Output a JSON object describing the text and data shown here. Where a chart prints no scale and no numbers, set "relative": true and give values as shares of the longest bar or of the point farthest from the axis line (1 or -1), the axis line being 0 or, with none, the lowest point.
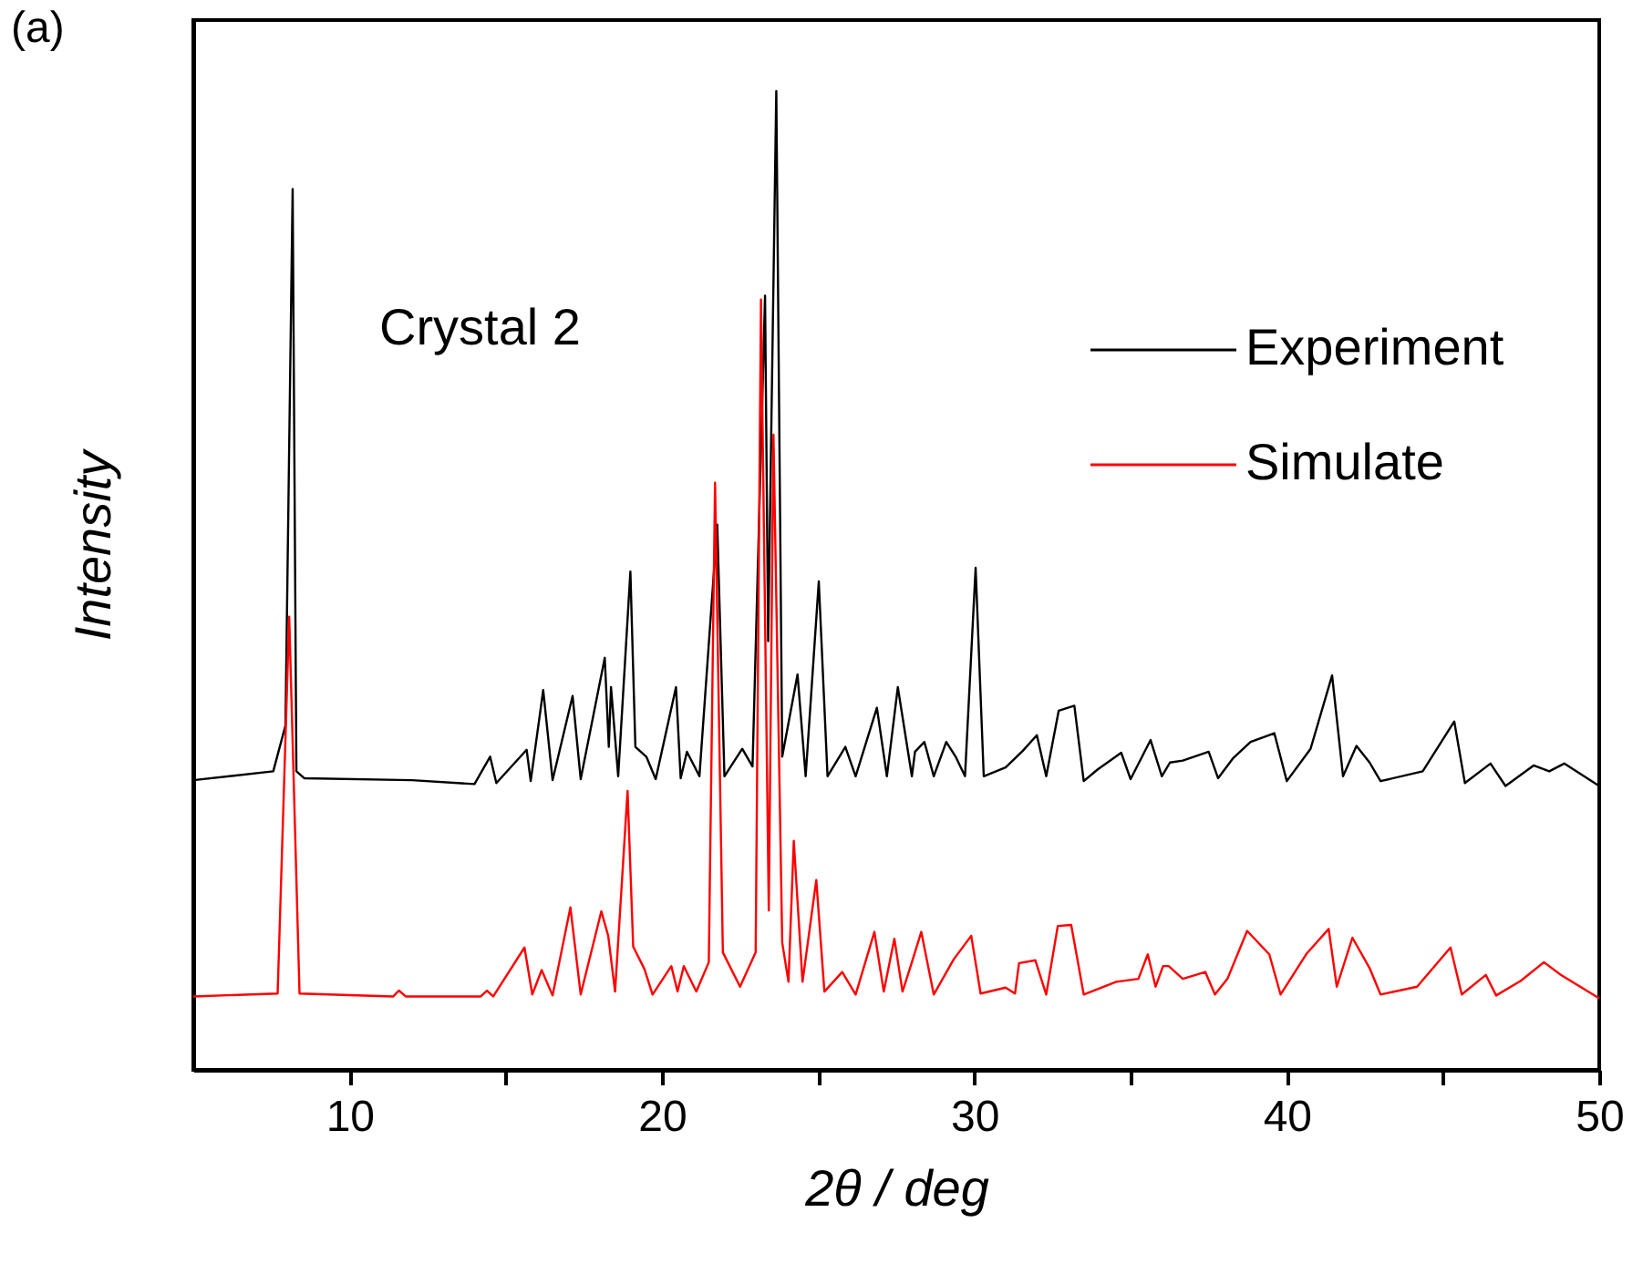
{
  "chart_data": {
    "type": "line",
    "xlabel": "2θ / deg",
    "ylabel": "Intensity",
    "relative": true,
    "xlim": [
      5,
      50
    ],
    "xticks": [
      10,
      {
        "value": 15,
        "label": null
      },
      20,
      {
        "value": 25,
        "label": null
      },
      30,
      {
        "value": 35,
        "label": null
      },
      40,
      {
        "value": 45,
        "label": null
      },
      50
    ],
    "legend": "top right",
    "grid": false,
    "marker": "none",
    "line_style": "solid",
    "annotations": [
      "(a)",
      "Crystal 2"
    ],
    "series": [
      {
        "name": "Experiment",
        "color": "#000000",
        "x": [
          5,
          7.56,
          7.95,
          8.18,
          8.3,
          8.55,
          12,
          14,
          14.5,
          14.7,
          15.67,
          15.8,
          16.2,
          16.5,
          17.14,
          17.4,
          18.17,
          18.3,
          18.37,
          18.6,
          18.99,
          19.15,
          19.5,
          19.8,
          20.45,
          20.6,
          20.8,
          21.2,
          21.77,
          22,
          22.57,
          22.9,
          23.3,
          23.4,
          23.66,
          23.85,
          24.34,
          24.6,
          25.02,
          25.3,
          25.87,
          26.2,
          26.88,
          27.2,
          27.55,
          28,
          28.1,
          28.4,
          28.7,
          29.1,
          29.4,
          29.7,
          30.04,
          30.3,
          31,
          31.55,
          32,
          32.3,
          32.7,
          33.2,
          33.5,
          33.95,
          34.7,
          35,
          35.64,
          36,
          36.26,
          36.67,
          37.5,
          37.8,
          38.27,
          38.84,
          39.6,
          40,
          40.76,
          41.45,
          41.8,
          42.23,
          42.65,
          43,
          44.35,
          45.36,
          45.7,
          46.52,
          47,
          47.9,
          48.4,
          48.88,
          50
        ],
        "values": [
          0.296,
          0.305,
          0.352,
          0.9,
          0.305,
          0.298,
          0.296,
          0.292,
          0.32,
          0.293,
          0.327,
          0.295,
          0.388,
          0.296,
          0.382,
          0.297,
          0.421,
          0.33,
          0.391,
          0.3,
          0.509,
          0.33,
          0.32,
          0.297,
          0.391,
          0.298,
          0.325,
          0.3,
          0.557,
          0.3,
          0.328,
          0.31,
          0.791,
          0.438,
          1.0,
          0.32,
          0.404,
          0.3,
          0.499,
          0.3,
          0.33,
          0.3,
          0.37,
          0.3,
          0.391,
          0.3,
          0.325,
          0.335,
          0.3,
          0.335,
          0.32,
          0.3,
          0.513,
          0.3,
          0.309,
          0.326,
          0.342,
          0.3,
          0.367,
          0.372,
          0.295,
          0.307,
          0.324,
          0.297,
          0.337,
          0.3,
          0.314,
          0.316,
          0.325,
          0.298,
          0.318,
          0.335,
          0.344,
          0.295,
          0.328,
          0.403,
          0.3,
          0.331,
          0.314,
          0.295,
          0.305,
          0.356,
          0.293,
          0.313,
          0.29,
          0.311,
          0.305,
          0.313,
          0.29
        ]
      },
      {
        "name": "Simulate",
        "color": "#ff0000",
        "x": [
          5,
          7.7,
          8.07,
          8.4,
          11.4,
          11.58,
          11.8,
          14.2,
          14.4,
          14.6,
          15.6,
          15.85,
          16.15,
          16.5,
          17.07,
          17.4,
          18.06,
          18.28,
          18.5,
          18.9,
          19.08,
          19.44,
          19.7,
          20.3,
          20.5,
          20.7,
          21.1,
          21.5,
          21.7,
          21.95,
          22.5,
          23,
          23.17,
          23.42,
          23.57,
          23.85,
          24.05,
          24.22,
          24.5,
          24.94,
          25.2,
          25.77,
          26.2,
          26.8,
          27.1,
          27.44,
          27.7,
          28,
          28.3,
          28.7,
          29.34,
          29.9,
          30.2,
          31,
          31.3,
          31.43,
          31.95,
          32.3,
          32.67,
          33.1,
          33.5,
          34.54,
          35.25,
          35.55,
          35.8,
          36.04,
          36.22,
          36.67,
          37.39,
          37.7,
          38.1,
          38.73,
          39.44,
          39.8,
          40.64,
          41.34,
          41.6,
          42.1,
          42.65,
          43,
          44.17,
          45.24,
          45.6,
          46.37,
          46.7,
          47.49,
          48.23,
          48.77,
          50
        ],
        "values": [
          0.075,
          0.078,
          0.463,
          0.078,
          0.075,
          0.081,
          0.075,
          0.075,
          0.081,
          0.075,
          0.125,
          0.077,
          0.102,
          0.076,
          0.166,
          0.077,
          0.162,
          0.137,
          0.08,
          0.285,
          0.126,
          0.103,
          0.077,
          0.106,
          0.08,
          0.106,
          0.08,
          0.11,
          0.6,
          0.12,
          0.085,
          0.12,
          0.787,
          0.163,
          0.649,
          0.13,
          0.09,
          0.234,
          0.09,
          0.194,
          0.08,
          0.1,
          0.077,
          0.141,
          0.08,
          0.134,
          0.08,
          0.11,
          0.141,
          0.077,
          0.113,
          0.137,
          0.078,
          0.084,
          0.078,
          0.109,
          0.112,
          0.077,
          0.147,
          0.148,
          0.077,
          0.09,
          0.093,
          0.118,
          0.085,
          0.106,
          0.106,
          0.093,
          0.1,
          0.077,
          0.093,
          0.142,
          0.118,
          0.077,
          0.119,
          0.144,
          0.085,
          0.135,
          0.104,
          0.077,
          0.085,
          0.125,
          0.077,
          0.097,
          0.076,
          0.091,
          0.11,
          0.097,
          0.073
        ]
      }
    ]
  }
}
